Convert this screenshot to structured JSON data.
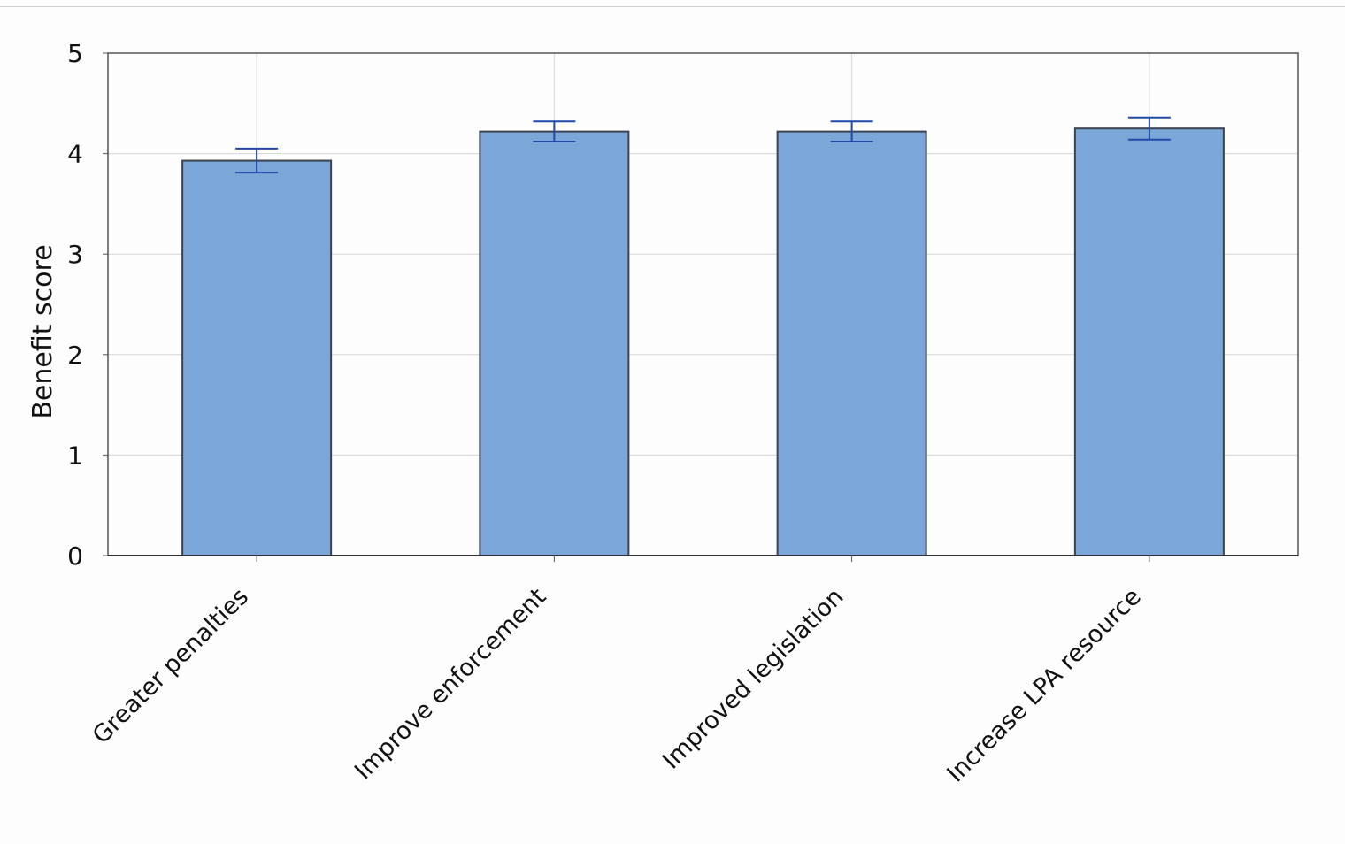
{
  "chart_data": {
    "type": "bar",
    "categories": [
      "Greater penalties",
      "Improve enforcement",
      "Improved legislation",
      "Increase LPA resource"
    ],
    "values": [
      3.93,
      4.22,
      4.22,
      4.25
    ],
    "errors": [
      0.12,
      0.1,
      0.1,
      0.11
    ],
    "title": "",
    "xlabel": "",
    "ylabel": "Benefit score",
    "ylim": [
      0,
      5
    ],
    "yticks": [
      0,
      1,
      2,
      3,
      4,
      5
    ],
    "grid": true,
    "legend": "none",
    "colors": {
      "bar_fill": "#7ba6d8",
      "bar_stroke": "#3c4250",
      "error_bar": "#1f4aa8",
      "grid": "#d6d6d6",
      "frame": "#555555"
    }
  }
}
